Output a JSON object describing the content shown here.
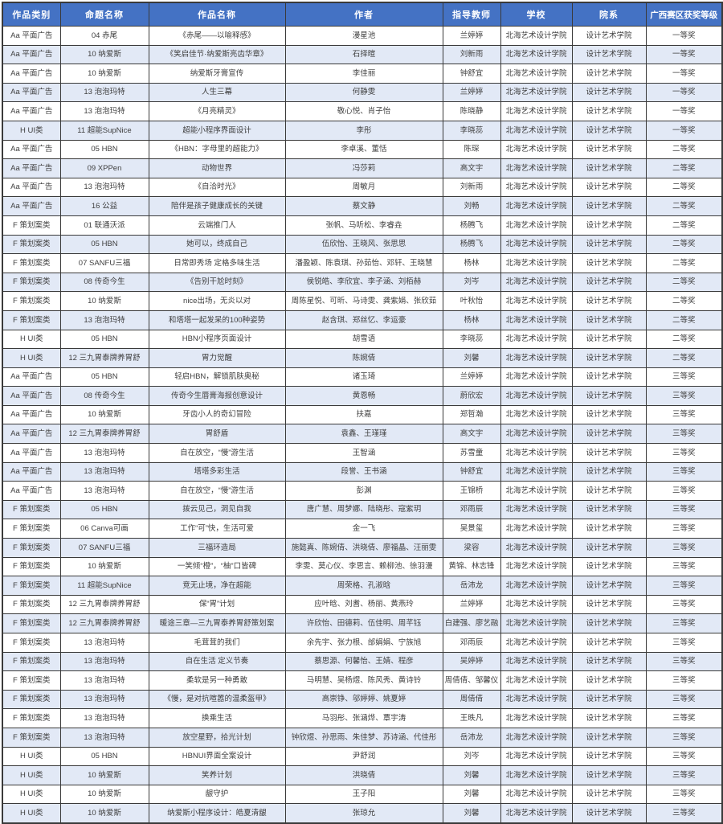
{
  "colors": {
    "header_bg": "#4472C4",
    "header_text": "#FFFFFF",
    "stripe_bg": "#E2E9F6",
    "border": "#3A3A3A",
    "text": "#3F3F3F"
  },
  "table": {
    "columns": [
      "作品类别",
      "命题名称",
      "作品名称",
      "作者",
      "指导教师",
      "学校",
      "院系",
      "广西赛区获奖等级"
    ],
    "column_keys": [
      "category",
      "topic",
      "title",
      "authors",
      "teacher",
      "school",
      "department",
      "award"
    ],
    "rows": [
      [
        "Aa 平面广告",
        "04 赤尾",
        "《赤尾——以喻释感》",
        "漫星池",
        "兰婷婷",
        "北海艺术设计学院",
        "设计艺术学院",
        "一等奖"
      ],
      [
        "Aa 平面广告",
        "10 纳爱斯",
        "《笑启佳节·纳爱斯亮齿华章》",
        "石择暄",
        "刘新雨",
        "北海艺术设计学院",
        "设计艺术学院",
        "一等奖"
      ],
      [
        "Aa 平面广告",
        "10 纳爱斯",
        "纳爱斯牙膏宣传",
        "李佳丽",
        "钟舒宜",
        "北海艺术设计学院",
        "设计艺术学院",
        "一等奖"
      ],
      [
        "Aa 平面广告",
        "13 泡泡玛特",
        "人生三幕",
        "何静雯",
        "兰婷婷",
        "北海艺术设计学院",
        "设计艺术学院",
        "一等奖"
      ],
      [
        "Aa 平面广告",
        "13 泡泡玛特",
        "《月亮精灵》",
        "敬心悦、肖子怡",
        "陈晓静",
        "北海艺术设计学院",
        "设计艺术学院",
        "一等奖"
      ],
      [
        "H UI类",
        "11 超能SupNice",
        "超能小程序界面设计",
        "李彤",
        "李晓蕊",
        "北海艺术设计学院",
        "设计艺术学院",
        "一等奖"
      ],
      [
        "Aa 平面广告",
        "05 HBN",
        "《HBN：字母里的超能力》",
        "李卓溪、董恬",
        "陈琛",
        "北海艺术设计学院",
        "设计艺术学院",
        "二等奖"
      ],
      [
        "Aa 平面广告",
        "09 XPPen",
        "动物世界",
        "冯莎莉",
        "高文宇",
        "北海艺术设计学院",
        "设计艺术学院",
        "二等奖"
      ],
      [
        "Aa 平面广告",
        "13 泡泡玛特",
        "《自洽时光》",
        "周敏月",
        "刘新雨",
        "北海艺术设计学院",
        "设计艺术学院",
        "二等奖"
      ],
      [
        "Aa 平面广告",
        "16 公益",
        "陪伴是孩子健康成长的关键",
        "蔡文静",
        "刘畅",
        "北海艺术设计学院",
        "设计艺术学院",
        "二等奖"
      ],
      [
        "F 策划案类",
        "01 联通沃派",
        "云端推门人",
        "张帆、马听松、李睿垚",
        "杨腾飞",
        "北海艺术设计学院",
        "设计艺术学院",
        "二等奖"
      ],
      [
        "F 策划案类",
        "05 HBN",
        "她可以，终成自己",
        "伍欣怡、王晓风、张思思",
        "杨腾飞",
        "北海艺术设计学院",
        "设计艺术学院",
        "二等奖"
      ],
      [
        "F 策划案类",
        "07 SANFU三福",
        "日常即秀场 定格多味生活",
        "潘盈颖、陈袁琪、孙茹怡、邓轩、王晓慧",
        "杨林",
        "北海艺术设计学院",
        "设计艺术学院",
        "二等奖"
      ],
      [
        "F 策划案类",
        "08 传奇今生",
        "《告别干尬时刻》",
        "侯锐皓、李欣宜、李子涵、刘栢赫",
        "刘岑",
        "北海艺术设计学院",
        "设计艺术学院",
        "二等奖"
      ],
      [
        "F 策划案类",
        "10 纳爱斯",
        "nice出场，无炎以对",
        "周陈星悦、可昕、马诗雯、龚紫娟、张欣茹",
        "叶秋怡",
        "北海艺术设计学院",
        "设计艺术学院",
        "二等奖"
      ],
      [
        "F 策划案类",
        "13 泡泡玛特",
        "和塔塔一起发呆的100种姿势",
        "赵含琪、郑丝忆、李运豪",
        "杨林",
        "北海艺术设计学院",
        "设计艺术学院",
        "二等奖"
      ],
      [
        "H UI类",
        "05 HBN",
        "HBN小程序页面设计",
        "胡雪语",
        "李晓蕊",
        "北海艺术设计学院",
        "设计艺术学院",
        "二等奖"
      ],
      [
        "H UI类",
        "12 三九胃泰牌养胃舒",
        "胃力觉醒",
        "陈婉倩",
        "刘馨",
        "北海艺术设计学院",
        "设计艺术学院",
        "二等奖"
      ],
      [
        "Aa 平面广告",
        "05 HBN",
        "轻启HBN，解锁肌肤奥秘",
        "诸玉琦",
        "兰婷婷",
        "北海艺术设计学院",
        "设计艺术学院",
        "三等奖"
      ],
      [
        "Aa 平面广告",
        "08 传奇今生",
        "传奇今生唇膏海报创意设计",
        "黄恩畅",
        "蔚欣宏",
        "北海艺术设计学院",
        "设计艺术学院",
        "三等奖"
      ],
      [
        "Aa 平面广告",
        "10 纳爱斯",
        "牙齿小人的奇幻冒险",
        "扶嘉",
        "郑哲瀚",
        "北海艺术设计学院",
        "设计艺术学院",
        "三等奖"
      ],
      [
        "Aa 平面广告",
        "12 三九胃泰牌养胃舒",
        "胃舒盾",
        "袁鑫、王瑾瑾",
        "高文宇",
        "北海艺术设计学院",
        "设计艺术学院",
        "三等奖"
      ],
      [
        "Aa 平面广告",
        "13 泡泡玛特",
        "自在放空，“慢”游生活",
        "王智涵",
        "苏雪童",
        "北海艺术设计学院",
        "设计艺术学院",
        "三等奖"
      ],
      [
        "Aa 平面广告",
        "13 泡泡玛特",
        "塔塔多彩生活",
        "段誉、王书涵",
        "钟舒宜",
        "北海艺术设计学院",
        "设计艺术学院",
        "三等奖"
      ],
      [
        "Aa 平面广告",
        "13 泡泡玛特",
        "自在放空，“慢”游生活",
        "彭渊",
        "王锦桥",
        "北海艺术设计学院",
        "设计艺术学院",
        "三等奖"
      ],
      [
        "F 策划案类",
        "05 HBN",
        "拨云见己，洞见自我",
        "唐广慧、周梦娜、陆晓彤、寇紫玥",
        "邓雨辰",
        "北海艺术设计学院",
        "设计艺术学院",
        "三等奖"
      ],
      [
        "F 策划案类",
        "06 Canva可画",
        "工作“可”快，生活可爱",
        "金一飞",
        "吴景玺",
        "北海艺术设计学院",
        "设计艺术学院",
        "三等奖"
      ],
      [
        "F 策划案类",
        "07 SANFU三福",
        "三福环造局",
        "施懿真、陈婉倩、洪晓倩、廖福晶、汪丽雯",
        "梁容",
        "北海艺术设计学院",
        "设计艺术学院",
        "三等奖"
      ],
      [
        "F 策划案类",
        "10 纳爱斯",
        "一笑倾“橙”，“柚”口皆碑",
        "李雯、莫心仪、李思言、赖柳池、徐羽漫",
        "黄锦、林志锋",
        "北海艺术设计学院",
        "设计艺术学院",
        "三等奖"
      ],
      [
        "F 策划案类",
        "11 超能SupNice",
        "竞无止境，净在超能",
        "周荣格、孔淑晗",
        "岳沛龙",
        "北海艺术设计学院",
        "设计艺术学院",
        "三等奖"
      ],
      [
        "F 策划案类",
        "12 三九胃泰牌养胃舒",
        "保“胃”计划",
        "应叶晗、刘耆、杨丽、黄燕玲",
        "兰婷婷",
        "北海艺术设计学院",
        "设计艺术学院",
        "三等奖"
      ],
      [
        "F 策划案类",
        "12 三九胃泰牌养胃舒",
        "暖途三章—三九胃泰养胃舒策划案",
        "许欣怡、田德莉、伍佳明、周芊钰",
        "白建强、廖艺融",
        "北海艺术设计学院",
        "设计艺术学院",
        "三等奖"
      ],
      [
        "F 策划案类",
        "13 泡泡玛特",
        "毛茸茸的我们",
        "余先宇、张力根、邰娟娟、宁族旭",
        "邓雨辰",
        "北海艺术设计学院",
        "设计艺术学院",
        "三等奖"
      ],
      [
        "F 策划案类",
        "13 泡泡玛特",
        "自在生活 定义节奏",
        "蔡思源、何馨怡、王婧、程彦",
        "吴婷婷",
        "北海艺术设计学院",
        "设计艺术学院",
        "三等奖"
      ],
      [
        "F 策划案类",
        "13 泡泡玛特",
        "柔软是另一种勇敢",
        "马明慧、吴杨煜、陈风秀、黄诗铃",
        "周倩倩、邹馨仪",
        "北海艺术设计学院",
        "设计艺术学院",
        "三等奖"
      ],
      [
        "F 策划案类",
        "13 泡泡玛特",
        "《慢，是对抗喧嚣的温柔盔甲》",
        "高崇铮、邬婷婷、姚夏婷",
        "周倩倩",
        "北海艺术设计学院",
        "设计艺术学院",
        "三等奖"
      ],
      [
        "F 策划案类",
        "13 泡泡玛特",
        "换乘生活",
        "马羽彤、张涵烨、覃宇涛",
        "王昳凡",
        "北海艺术设计学院",
        "设计艺术学院",
        "三等奖"
      ],
      [
        "F 策划案类",
        "13 泡泡玛特",
        "放空星野，拾光计划",
        "钟欣煜、孙思雨、朱佳梦、苏诗涵、代佳彤",
        "岳沛龙",
        "北海艺术设计学院",
        "设计艺术学院",
        "三等奖"
      ],
      [
        "H UI类",
        "05 HBN",
        "HBNUI界面全案设计",
        "尹舒润",
        "刘岑",
        "北海艺术设计学院",
        "设计艺术学院",
        "三等奖"
      ],
      [
        "H UI类",
        "10 纳爱斯",
        "笑养计划",
        "洪晓倩",
        "刘馨",
        "北海艺术设计学院",
        "设计艺术学院",
        "三等奖"
      ],
      [
        "H UI类",
        "10 纳爱斯",
        "龈守护",
        "王子阳",
        "刘馨",
        "北海艺术设计学院",
        "设计艺术学院",
        "三等奖"
      ],
      [
        "H UI类",
        "10 纳爱斯",
        "纳爱斯小程序设计：皓夏清龈",
        "张琼允",
        "刘馨",
        "北海艺术设计学院",
        "设计艺术学院",
        "三等奖"
      ]
    ]
  }
}
